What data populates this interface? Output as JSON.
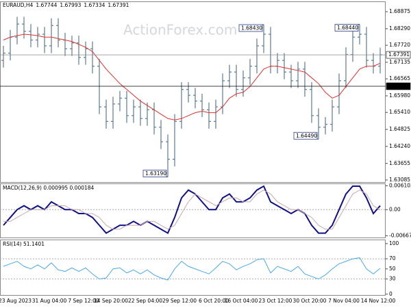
{
  "chart_data": [
    {
      "type": "ohlc",
      "header": [
        "EURAUD,H4",
        "1.67744",
        "1.67993",
        "1.67334",
        "1.67391"
      ],
      "watermark": "ActionForex.com",
      "categories": [
        null,
        null,
        "23 Aug 2023",
        null,
        null,
        null,
        null,
        "31 Aug 04:00",
        null,
        null,
        null,
        null,
        "7 Sep 12:00",
        null,
        null,
        null,
        "14 Sep 20:00",
        null,
        null,
        null,
        null,
        "22 Sep 04:00",
        null,
        null,
        null,
        null,
        "29 Sep 12:00",
        null,
        null,
        null,
        null,
        "6 Oct 20:00",
        null,
        null,
        null,
        "16 Oct 04:00",
        null,
        null,
        null,
        null,
        "23 Oct 12:00",
        null,
        null,
        null,
        null,
        "30 Oct 20:00",
        null,
        null,
        null,
        null,
        "7 Nov 04:00",
        null,
        null,
        null,
        null,
        "14 Nov 12:00"
      ],
      "open": [
        1.672,
        1.6745,
        1.68,
        1.6845,
        1.682,
        1.679,
        1.681,
        1.677,
        1.684,
        1.679,
        1.676,
        1.678,
        1.673,
        1.676,
        1.67,
        1.656,
        1.651,
        1.657,
        1.659,
        1.653,
        1.656,
        1.652,
        1.655,
        1.649,
        1.644,
        1.638,
        1.651,
        1.662,
        1.66,
        1.658,
        1.655,
        1.651,
        1.656,
        1.665,
        1.668,
        1.662,
        1.666,
        1.67,
        1.677,
        1.681,
        1.67,
        1.672,
        1.668,
        1.665,
        1.669,
        1.662,
        1.653,
        1.649,
        1.65,
        1.656,
        1.665,
        1.674,
        1.68,
        1.681,
        1.672,
        1.67
      ],
      "high": [
        1.677,
        1.6825,
        1.687,
        1.687,
        1.6845,
        1.6835,
        1.6835,
        1.6865,
        1.6865,
        1.6815,
        1.6805,
        1.6805,
        1.6785,
        1.6785,
        1.6725,
        1.6585,
        1.6595,
        1.6615,
        1.6615,
        1.6585,
        1.6585,
        1.6575,
        1.6575,
        1.6515,
        1.6465,
        1.6535,
        1.6645,
        1.6645,
        1.6625,
        1.6605,
        1.6575,
        1.6585,
        1.6675,
        1.6705,
        1.6705,
        1.6685,
        1.6725,
        1.6795,
        1.6843,
        1.6835,
        1.6745,
        1.6745,
        1.6705,
        1.6715,
        1.6715,
        1.6645,
        1.6555,
        1.6525,
        1.6585,
        1.6675,
        1.6765,
        1.6825,
        1.6844,
        1.6835,
        1.6745,
        1.6764
      ],
      "low": [
        1.6695,
        1.672,
        1.6775,
        1.6795,
        1.6765,
        1.6765,
        1.6745,
        1.6745,
        1.6765,
        1.6735,
        1.6735,
        1.6705,
        1.6705,
        1.6675,
        1.6535,
        1.6485,
        1.6485,
        1.6545,
        1.6505,
        1.6505,
        1.6495,
        1.6495,
        1.6465,
        1.6415,
        1.6319,
        1.6355,
        1.6485,
        1.6575,
        1.6555,
        1.6525,
        1.6485,
        1.6485,
        1.6535,
        1.6625,
        1.6595,
        1.6595,
        1.6635,
        1.6675,
        1.6745,
        1.6675,
        1.6675,
        1.6655,
        1.6625,
        1.6625,
        1.6595,
        1.6505,
        1.6449,
        1.6465,
        1.6475,
        1.6535,
        1.6625,
        1.6715,
        1.6775,
        1.6695,
        1.6675,
        1.6675
      ],
      "close": [
        1.6745,
        1.68,
        1.6845,
        1.682,
        1.679,
        1.681,
        1.677,
        1.684,
        1.679,
        1.676,
        1.678,
        1.673,
        1.676,
        1.67,
        1.656,
        1.651,
        1.657,
        1.659,
        1.653,
        1.656,
        1.652,
        1.655,
        1.649,
        1.644,
        1.638,
        1.651,
        1.662,
        1.66,
        1.658,
        1.655,
        1.651,
        1.656,
        1.665,
        1.668,
        1.662,
        1.666,
        1.67,
        1.677,
        1.681,
        1.67,
        1.672,
        1.668,
        1.665,
        1.669,
        1.662,
        1.653,
        1.649,
        1.65,
        1.656,
        1.665,
        1.674,
        1.68,
        1.681,
        1.672,
        1.67,
        1.6739
      ],
      "color": "#5b7a8e",
      "ma": {
        "color": "#e0302c",
        "values": [
          1.679,
          1.68,
          1.6805,
          1.681,
          1.6808,
          1.6805,
          1.68,
          1.68,
          1.6795,
          1.679,
          1.6785,
          1.6775,
          1.6765,
          1.675,
          1.672,
          1.669,
          1.6665,
          1.664,
          1.662,
          1.66,
          1.658,
          1.6565,
          1.655,
          1.6535,
          1.652,
          1.6515,
          1.652,
          1.653,
          1.654,
          1.6545,
          1.654,
          1.654,
          1.656,
          1.659,
          1.6605,
          1.661,
          1.663,
          1.666,
          1.669,
          1.67,
          1.67,
          1.6695,
          1.669,
          1.6685,
          1.668,
          1.666,
          1.664,
          1.661,
          1.659,
          1.66,
          1.663,
          1.666,
          1.669,
          1.67,
          1.67,
          1.671
        ]
      },
      "ylim": [
        1.6299,
        1.6923
      ],
      "yticks": [
        1.68875,
        {
          "value": 1.6829,
          "label": "1.68290"
        },
        {
          "value": 1.6772,
          "label": "1.67720"
        },
        1.67135,
        1.66565,
        {
          "value": 1.6598,
          "label": "1.65980"
        },
        {
          "value": 1.6541,
          "label": "1.65410"
        },
        1.64825,
        {
          "value": 1.6424,
          "label": "1.64240"
        },
        1.63655,
        1.63085
      ],
      "current_price": {
        "value": 1.67391,
        "label": "1.67391"
      },
      "level": {
        "value": 1.6631,
        "label": "1.66310"
      },
      "annotations": [
        {
          "value": 1.6843,
          "label": "1.68430"
        },
        {
          "value": 1.6844,
          "label": "1.68440"
        },
        {
          "value": 1.6449,
          "label": "1.64490"
        },
        {
          "value": 1.6319,
          "label": "1.63190"
        }
      ]
    },
    {
      "type": "line",
      "title": "MACD(12,26,9) 0.000995 0.000184",
      "series": [
        {
          "color": "#10108a",
          "width": 2,
          "values": [
            -0.004,
            -0.002,
            0,
            0.001,
            0,
            0.001,
            0,
            0.002,
            0.001,
            0,
            0,
            -0.001,
            -0.001,
            -0.002,
            -0.004,
            -0.006,
            -0.005,
            -0.004,
            -0.004,
            -0.003,
            -0.004,
            -0.003,
            -0.004,
            -0.005,
            -0.006,
            -0.002,
            0.003,
            0.005,
            0.004,
            0.002,
            0,
            0,
            0.003,
            0.004,
            0.002,
            0.002,
            0.003,
            0.005,
            0.006,
            0.002,
            0.001,
            0,
            -0.001,
            0,
            -0.001,
            -0.004,
            -0.006,
            -0.006,
            -0.004,
            0,
            0.004,
            0.006,
            0.006,
            0.003,
            -0.001,
            0.001
          ]
        },
        {
          "color": "#c8a8a8",
          "width": 1,
          "values": [
            -0.003,
            -0.003,
            -0.002,
            -0.001,
            0,
            0,
            0,
            0.001,
            0.001,
            0.001,
            0,
            0,
            -0.001,
            -0.001,
            -0.002,
            -0.004,
            -0.005,
            -0.005,
            -0.004,
            -0.004,
            -0.004,
            -0.003,
            -0.003,
            -0.004,
            -0.005,
            -0.004,
            -0.001,
            0.002,
            0.004,
            0.003,
            0.002,
            0.001,
            0.002,
            0.003,
            0.003,
            0.002,
            0.002,
            0.004,
            0.005,
            0.004,
            0.002,
            0.001,
            0,
            0,
            -0.001,
            -0.002,
            -0.004,
            -0.005,
            -0.005,
            -0.002,
            0.001,
            0.004,
            0.005,
            0.004,
            0.001,
            0
          ]
        }
      ],
      "ylim": [
        -0.0073,
        0.0067
      ],
      "yticks": [
        0.006103,
        {
          "value": 0,
          "label": "0.00"
        },
        -0.006679
      ],
      "levels": [
        0
      ]
    },
    {
      "type": "line",
      "title": "RSI(14) 51.1401",
      "series": [
        {
          "color": "#4aa8e8",
          "width": 1,
          "values": [
            55,
            60,
            65,
            55,
            50,
            58,
            50,
            62,
            48,
            45,
            52,
            45,
            52,
            40,
            30,
            32,
            50,
            52,
            42,
            48,
            40,
            48,
            38,
            32,
            28,
            50,
            65,
            55,
            50,
            45,
            40,
            52,
            65,
            60,
            48,
            55,
            60,
            68,
            70,
            42,
            55,
            50,
            45,
            55,
            40,
            35,
            30,
            38,
            50,
            60,
            65,
            70,
            72,
            50,
            40,
            51.14
          ]
        }
      ],
      "ylim": [
        -3,
        108
      ],
      "yticks": [
        100,
        70,
        50,
        30,
        0
      ],
      "levels": [
        70,
        30
      ]
    }
  ]
}
